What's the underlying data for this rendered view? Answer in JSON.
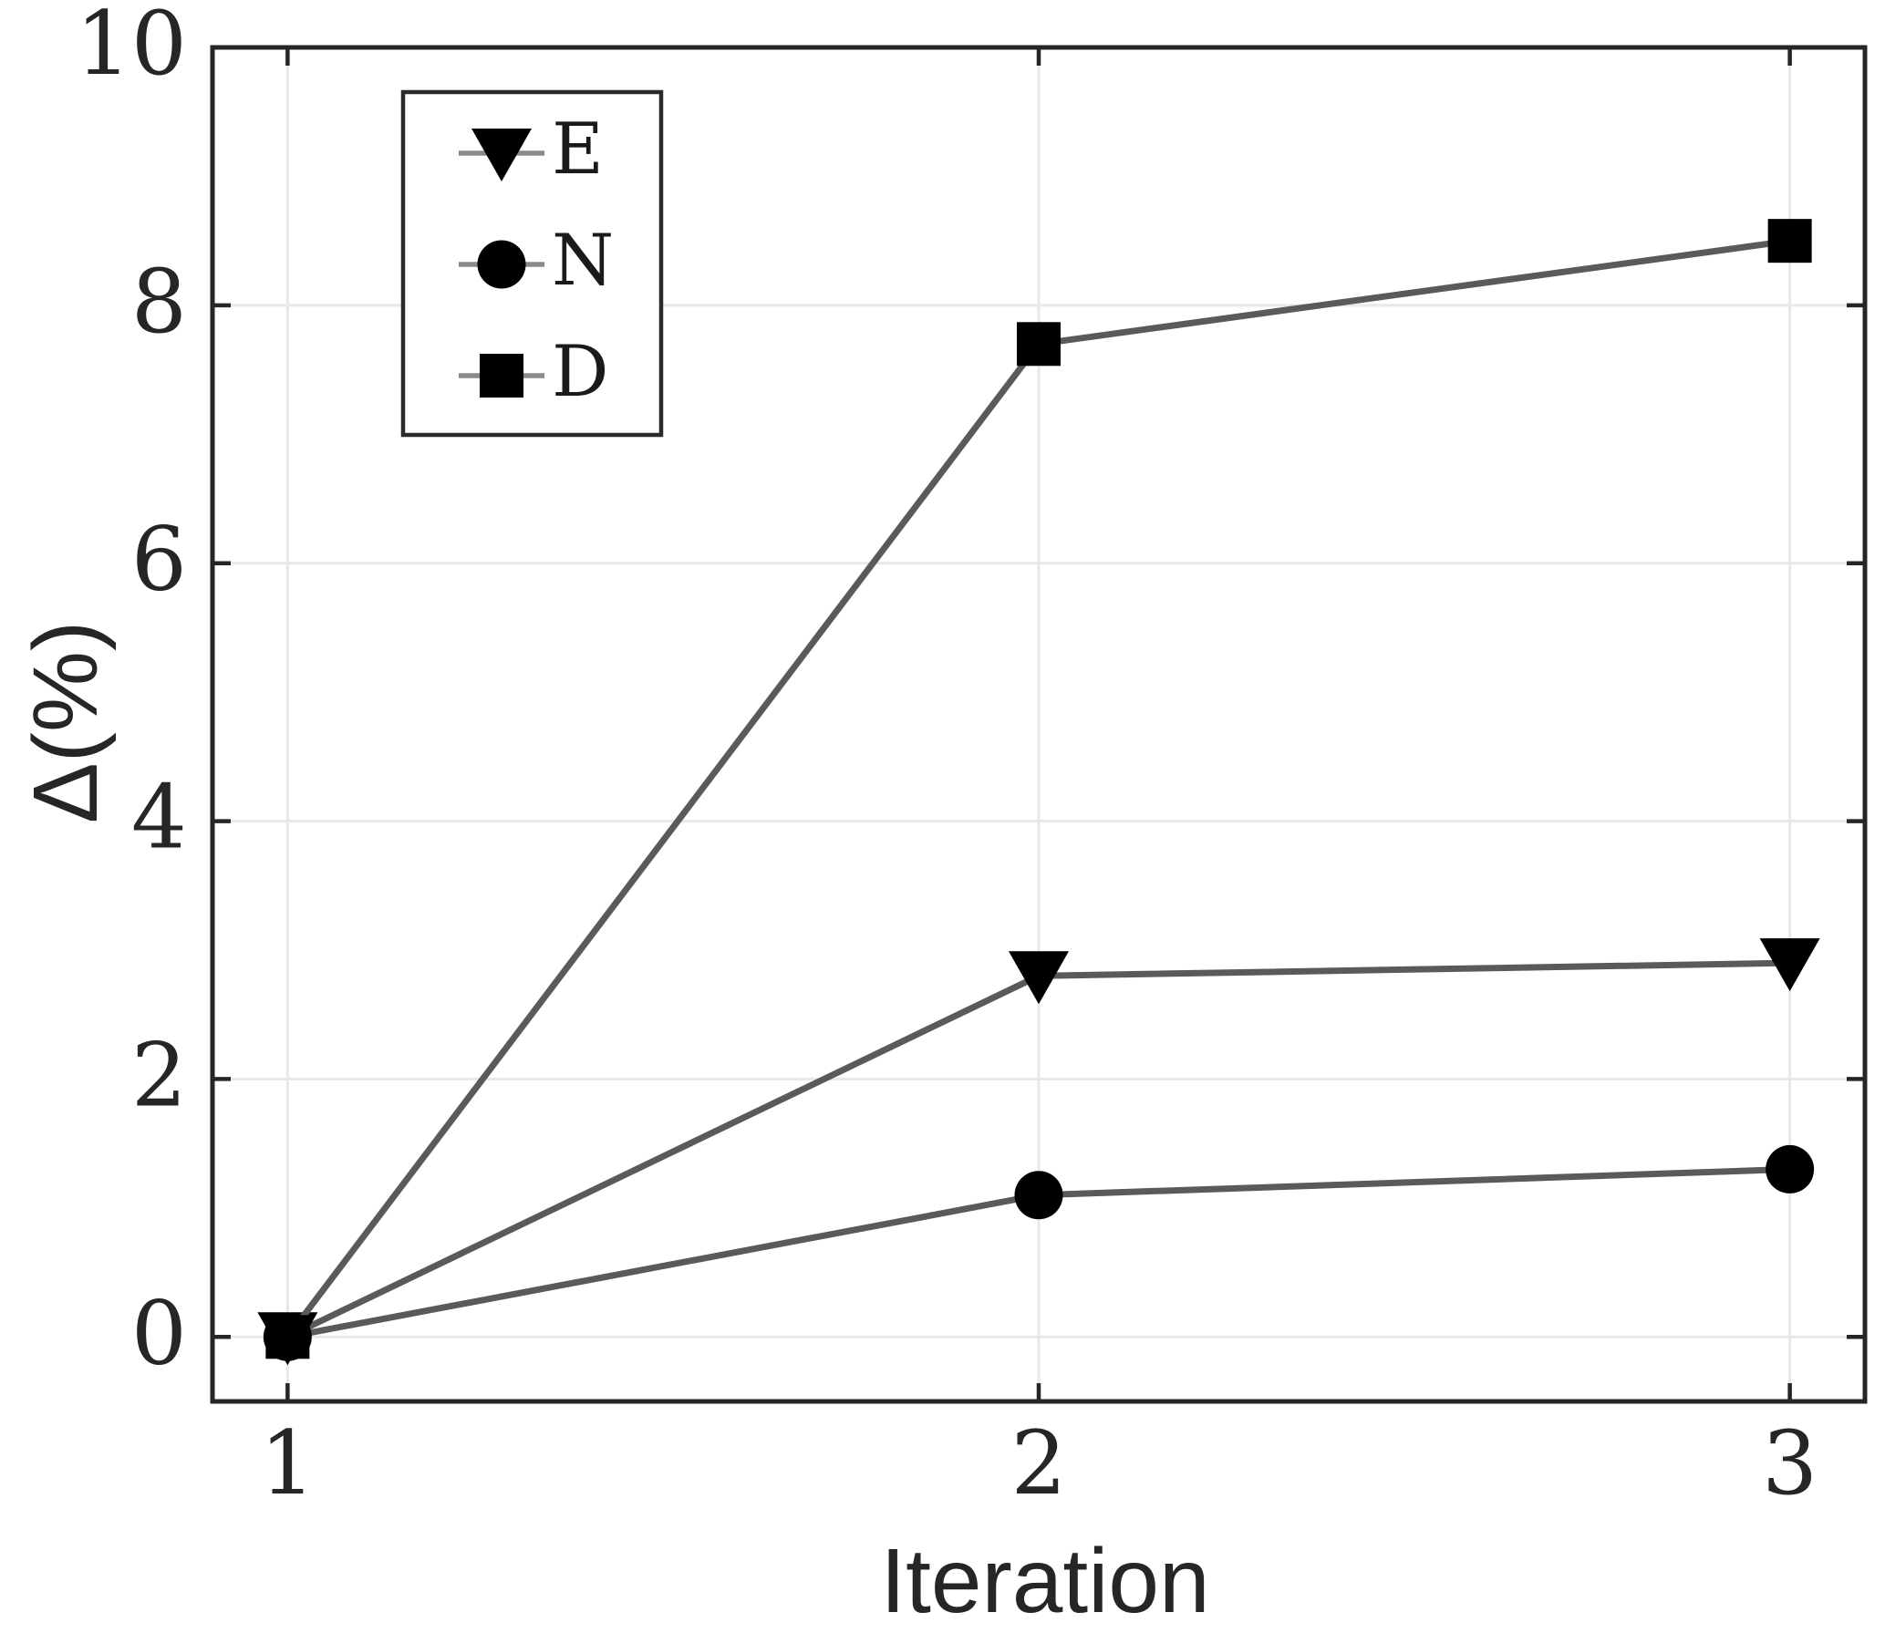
{
  "chart_data": {
    "type": "line",
    "title": "",
    "xlabel": "Iteration",
    "ylabel": "Δ(%)",
    "x": [
      1,
      2,
      3
    ],
    "series": [
      {
        "name": "E",
        "marker": "triangle-down",
        "values": [
          0,
          2.8,
          2.9
        ]
      },
      {
        "name": "N",
        "marker": "circle",
        "values": [
          0,
          1.1,
          1.3
        ]
      },
      {
        "name": "D",
        "marker": "square",
        "values": [
          0,
          7.7,
          8.5
        ]
      }
    ],
    "xticks": [
      1,
      2,
      3
    ],
    "xtick_labels": [
      "1",
      "2",
      "3"
    ],
    "yticks": [
      0,
      2,
      4,
      6,
      8,
      10
    ],
    "ytick_labels": [
      "0",
      "2",
      "4",
      "6",
      "8",
      "10"
    ],
    "xlim": [
      0.9,
      3.1
    ],
    "ylim": [
      -0.5,
      10
    ],
    "grid": true,
    "box": true,
    "tick_direction": "in",
    "legend": {
      "position": "upper-left-inside",
      "entries": [
        "E",
        "N",
        "D"
      ]
    },
    "colors": {
      "background": "#ffffff",
      "axis": "#262626",
      "grid": "#e8e8e8",
      "line": "#5a5a5a",
      "marker": "#000000",
      "legend_sample_line": "#8a8a8a",
      "tick_label": "#262626",
      "axis_label": "#262626",
      "legend_label": "#1a1a1a",
      "legend_border": "#2b2b2b"
    }
  }
}
